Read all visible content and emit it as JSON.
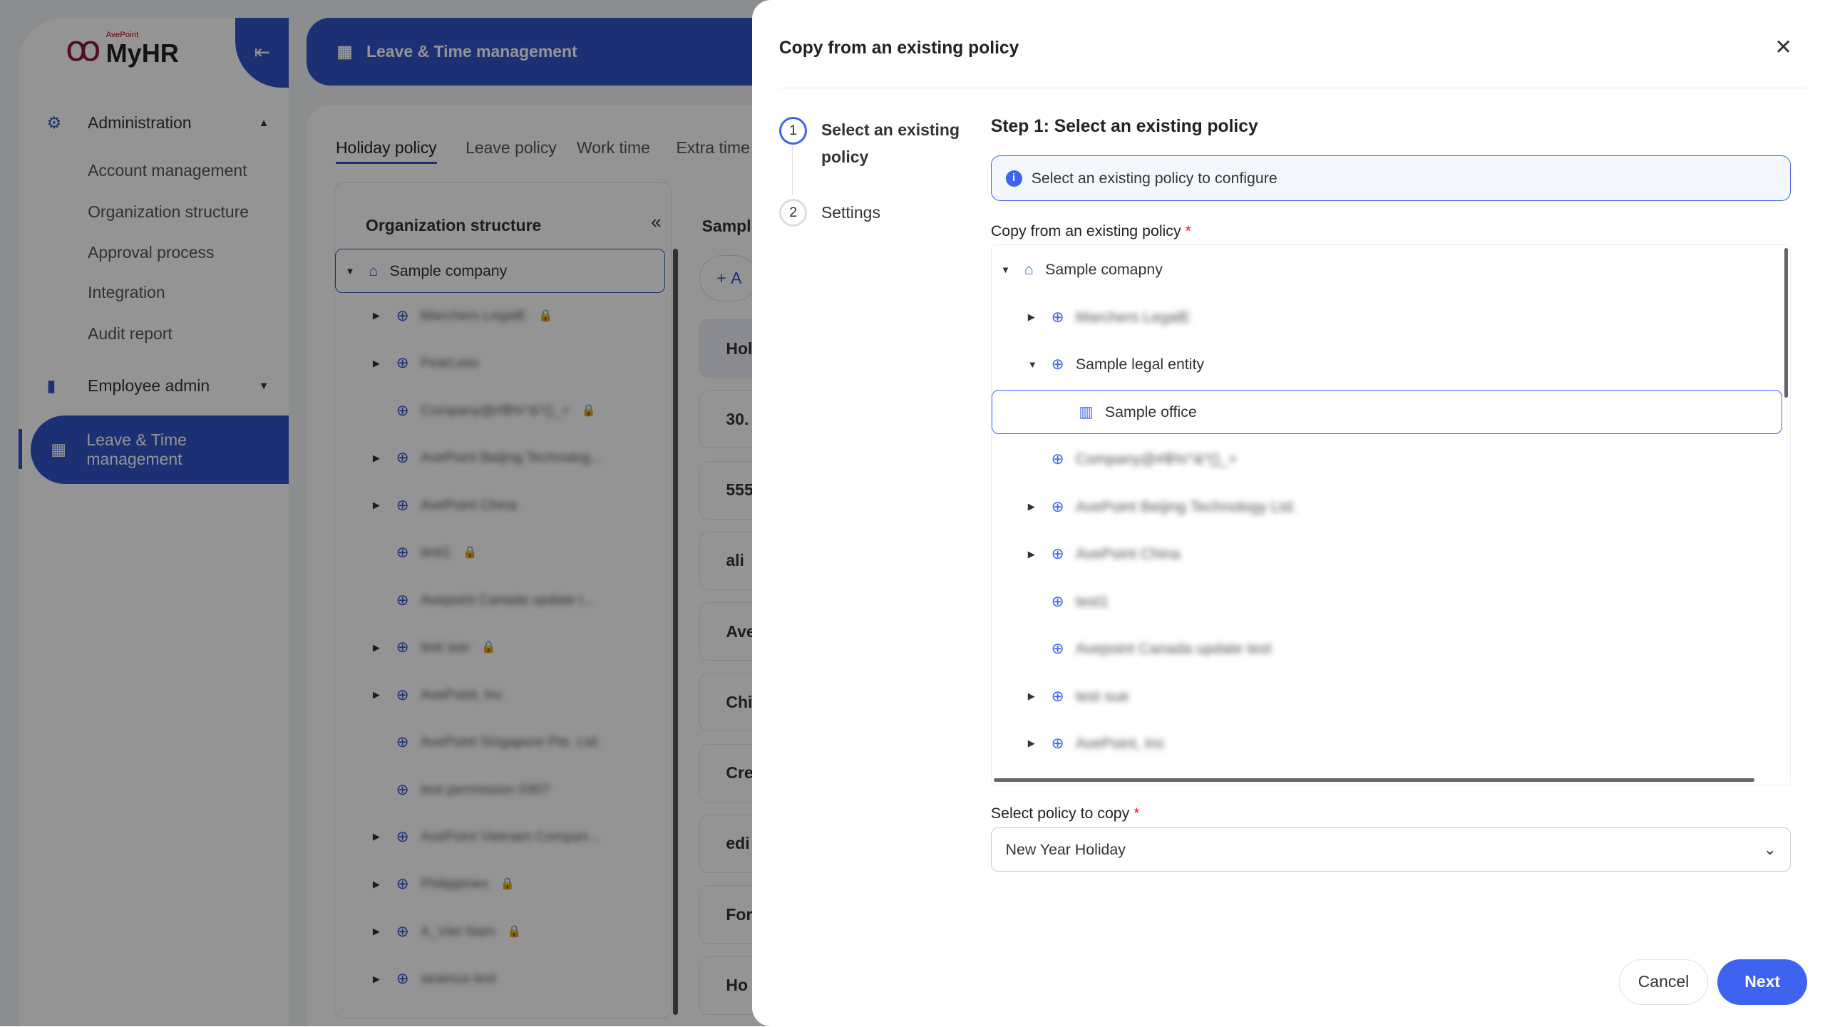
{
  "app": {
    "brand": "MyHR",
    "brand_company": "AvePoint",
    "page_title": "Leave & Time management"
  },
  "sidebar": {
    "groups": [
      {
        "label": "Administration",
        "icon": "gear-icon",
        "expanded": true,
        "items": [
          "Account management",
          "Organization structure",
          "Approval process",
          "Integration",
          "Audit report"
        ]
      },
      {
        "label": "Employee admin",
        "icon": "badge-icon",
        "expanded": false
      }
    ],
    "active": "Leave & Time management"
  },
  "tabs": [
    "Holiday policy",
    "Leave policy",
    "Work time",
    "Extra time"
  ],
  "org_panel": {
    "title": "Organization structure",
    "root": "Sample company",
    "items": [
      {
        "name": "Marchers LegalE",
        "locked": true,
        "expandable": true
      },
      {
        "name": "FearLess",
        "locked": false,
        "expandable": true
      },
      {
        "name": "Company@#$%^&*()_+",
        "locked": true,
        "expandable": false
      },
      {
        "name": "AvePoint Beijing Technolog...",
        "locked": false,
        "expandable": true
      },
      {
        "name": "AvePoint China",
        "locked": false,
        "expandable": true
      },
      {
        "name": "test1",
        "locked": true,
        "expandable": false
      },
      {
        "name": "Avepoint Canada update t...",
        "locked": false,
        "expandable": false
      },
      {
        "name": "test sue",
        "locked": true,
        "expandable": true
      },
      {
        "name": "AvePoint, Inc",
        "locked": false,
        "expandable": true
      },
      {
        "name": "AvePoint Singapore Pte. Ltd.",
        "locked": false,
        "expandable": false
      },
      {
        "name": "test permission 0307",
        "locked": false,
        "expandable": false
      },
      {
        "name": "AvePoint Vietnam Compan...",
        "locked": false,
        "expandable": true
      },
      {
        "name": "Philippines",
        "locked": true,
        "expandable": true
      },
      {
        "name": "A_Viet Nam",
        "locked": true,
        "expandable": true
      },
      {
        "name": "seamus test",
        "locked": false,
        "expandable": true
      }
    ]
  },
  "background_cards": {
    "header": "Sampl",
    "add": "A",
    "rows": [
      "Hol",
      "30.",
      "555",
      "ali",
      "Ave",
      "Chi",
      "Cre",
      "edi",
      "For",
      "Ho"
    ]
  },
  "dialog": {
    "title": "Copy from an existing policy",
    "steps": [
      {
        "num": "1",
        "label": "Select an existing policy",
        "current": true
      },
      {
        "num": "2",
        "label": "Settings",
        "current": false
      }
    ],
    "step_heading": "Step 1: Select an existing policy",
    "info": "Select an existing policy to configure",
    "tree_label": "Copy from an existing policy",
    "tree": [
      {
        "name": "Sample comapny",
        "level": 0,
        "icon": "home-icon",
        "toggle": "expanded"
      },
      {
        "name": "Marchers LegalE",
        "level": 1,
        "icon": "globe-icon",
        "toggle": "collapsed",
        "blurred": true
      },
      {
        "name": "Sample legal entity",
        "level": 1,
        "icon": "globe-icon",
        "toggle": "expanded"
      },
      {
        "name": "Sample office",
        "level": 2,
        "icon": "building-icon",
        "toggle": "none",
        "selected": true
      },
      {
        "name": "Company@#$%^&*()_+",
        "level": 1,
        "icon": "globe-icon",
        "toggle": "none",
        "blurred": true
      },
      {
        "name": "AvePoint Beijing Technology Ltd.",
        "level": 1,
        "icon": "globe-icon",
        "toggle": "collapsed",
        "blurred": true
      },
      {
        "name": "AvePoint China",
        "level": 1,
        "icon": "globe-icon",
        "toggle": "collapsed",
        "blurred": true
      },
      {
        "name": "test1",
        "level": 1,
        "icon": "globe-icon",
        "toggle": "none",
        "blurred": true
      },
      {
        "name": "Avepoint Canada update test",
        "level": 1,
        "icon": "globe-icon",
        "toggle": "none",
        "blurred": true
      },
      {
        "name": "test sue",
        "level": 1,
        "icon": "globe-icon",
        "toggle": "collapsed",
        "blurred": true
      },
      {
        "name": "AvePoint, Inc",
        "level": 1,
        "icon": "globe-icon",
        "toggle": "collapsed",
        "blurred": true
      }
    ],
    "policy_label": "Select policy to copy",
    "policy_value": "New Year Holiday",
    "cancel": "Cancel",
    "next": "Next",
    "accent": "#3d63f0"
  }
}
